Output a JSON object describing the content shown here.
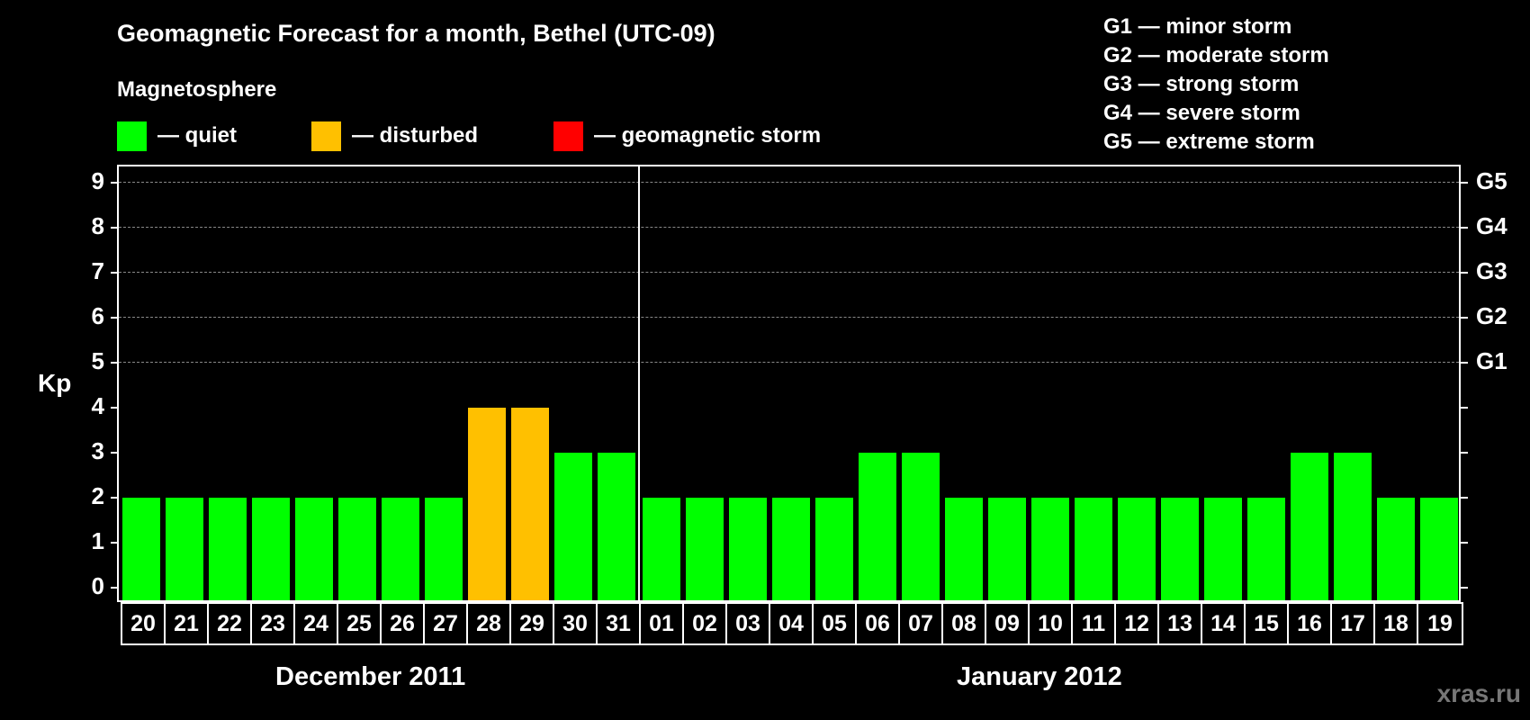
{
  "header": {
    "title": "Geomagnetic Forecast for a month, Bethel (UTC-09)",
    "section_label": "Magnetosphere"
  },
  "legend": [
    {
      "label": "— quiet",
      "color": "#00ff00"
    },
    {
      "label": "— disturbed",
      "color": "#ffc000"
    },
    {
      "label": "— geomagnetic storm",
      "color": "#ff0000"
    }
  ],
  "g_legend": [
    "G1 — minor storm",
    "G2 — moderate storm",
    "G3 — strong storm",
    "G4 — severe storm",
    "G5 — extreme storm"
  ],
  "axis": {
    "ylabel": "Kp",
    "y_ticks": [
      "0",
      "1",
      "2",
      "3",
      "4",
      "5",
      "6",
      "7",
      "8",
      "9"
    ],
    "right_ticks": [
      "G1",
      "G2",
      "G3",
      "G4",
      "G5"
    ]
  },
  "months": {
    "left": "December 2011",
    "right": "January 2012"
  },
  "watermark": "xras.ru",
  "chart_data": {
    "type": "bar",
    "title": "Geomagnetic Forecast for a month, Bethel (UTC-09)",
    "xlabel": "",
    "ylabel": "Kp",
    "ylim": [
      0,
      9
    ],
    "grid": "dashed horizontal at Kp 5-9",
    "legend_position": "top",
    "categories": [
      "20",
      "21",
      "22",
      "23",
      "24",
      "25",
      "26",
      "27",
      "28",
      "29",
      "30",
      "31",
      "01",
      "02",
      "03",
      "04",
      "05",
      "06",
      "07",
      "08",
      "09",
      "10",
      "11",
      "12",
      "13",
      "14",
      "15",
      "16",
      "17",
      "18",
      "19"
    ],
    "values": [
      2,
      2,
      2,
      2,
      2,
      2,
      2,
      2,
      4,
      4,
      3,
      3,
      2,
      2,
      2,
      2,
      2,
      3,
      3,
      2,
      2,
      2,
      2,
      2,
      2,
      2,
      2,
      3,
      3,
      2,
      2
    ],
    "colors": [
      "#00ff00",
      "#00ff00",
      "#00ff00",
      "#00ff00",
      "#00ff00",
      "#00ff00",
      "#00ff00",
      "#00ff00",
      "#ffc000",
      "#ffc000",
      "#00ff00",
      "#00ff00",
      "#00ff00",
      "#00ff00",
      "#00ff00",
      "#00ff00",
      "#00ff00",
      "#00ff00",
      "#00ff00",
      "#00ff00",
      "#00ff00",
      "#00ff00",
      "#00ff00",
      "#00ff00",
      "#00ff00",
      "#00ff00",
      "#00ff00",
      "#00ff00",
      "#00ff00",
      "#00ff00",
      "#00ff00"
    ],
    "month_groups": [
      {
        "label": "December 2011",
        "from": "20",
        "to": "31"
      },
      {
        "label": "January 2012",
        "from": "01",
        "to": "19"
      }
    ],
    "right_axis": {
      "5": "G1",
      "6": "G2",
      "7": "G3",
      "8": "G4",
      "9": "G5"
    }
  }
}
